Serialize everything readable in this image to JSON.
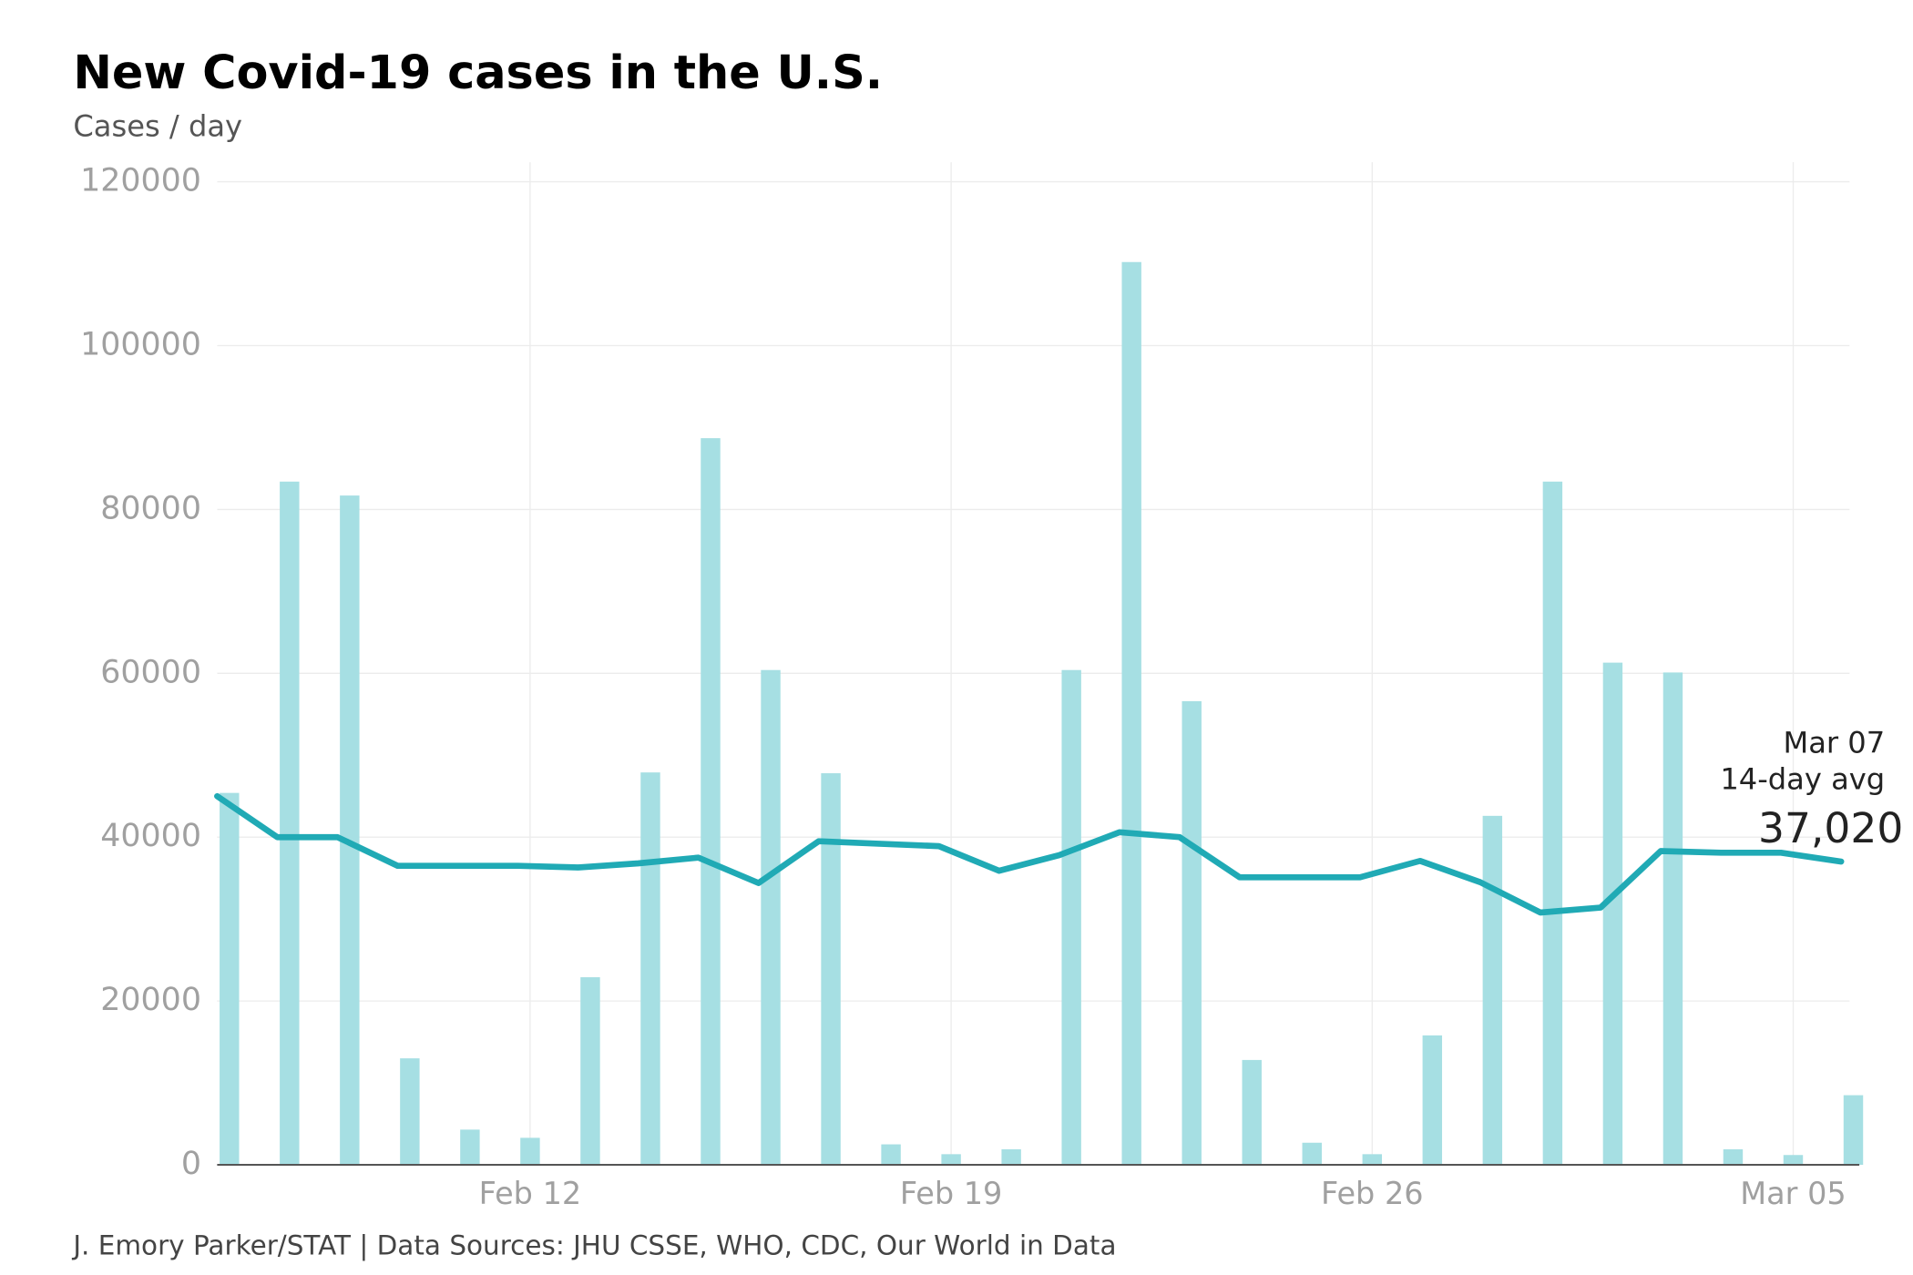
{
  "chart_data": {
    "type": "bar_line",
    "title": "New Covid-19 cases in the U.S.",
    "subtitle": "Cases / day",
    "source": "J. Emory Parker/STAT | Data Sources: JHU CSSE, WHO, CDC, Our World in Data",
    "x": [
      "Feb 07",
      "Feb 08",
      "Feb 09",
      "Feb 10",
      "Feb 11",
      "Feb 12",
      "Feb 13",
      "Feb 14",
      "Feb 15",
      "Feb 16",
      "Feb 17",
      "Feb 18",
      "Feb 19",
      "Feb 20",
      "Feb 21",
      "Feb 22",
      "Feb 23",
      "Feb 24",
      "Feb 25",
      "Feb 26",
      "Feb 27",
      "Feb 28",
      "Mar 01",
      "Mar 02",
      "Mar 03",
      "Mar 04",
      "Mar 05",
      "Mar 06"
    ],
    "xticks": [
      "Feb 12",
      "Feb 19",
      "Feb 26",
      "Mar 05"
    ],
    "ylim": [
      0,
      120000
    ],
    "yticks": [
      0,
      20000,
      40000,
      60000,
      80000,
      100000,
      120000
    ],
    "grid": true,
    "series": [
      {
        "type": "bar",
        "color": "#a6dfe3",
        "values": [
          45400,
          83400,
          81700,
          13000,
          4300,
          3300,
          22900,
          47900,
          88700,
          60400,
          47800,
          2500,
          1300,
          1900,
          60400,
          110200,
          56600,
          12800,
          2700,
          1300,
          15800,
          42600,
          83400,
          61300,
          60100,
          1900,
          1200,
          8500
        ]
      },
      {
        "type": "line",
        "color": "#20aab5",
        "values": [
          45000,
          40000,
          40000,
          36500,
          36500,
          36500,
          36300,
          36800,
          37500,
          34400,
          39500,
          39200,
          38900,
          35900,
          37800,
          40600,
          40000,
          35100,
          35100,
          35100,
          37100,
          34500,
          30800,
          31400,
          38300,
          38100,
          38100,
          37020
        ],
        "value_labels": [
          null,
          null,
          null,
          null,
          null,
          null,
          null,
          null,
          null,
          null,
          null,
          null,
          null,
          null,
          null,
          null,
          null,
          null,
          null,
          null,
          null,
          null,
          null,
          null,
          null,
          null,
          null,
          "37,020"
        ],
        "annotation": [
          "Mar 07",
          "14-day avg"
        ]
      }
    ]
  }
}
